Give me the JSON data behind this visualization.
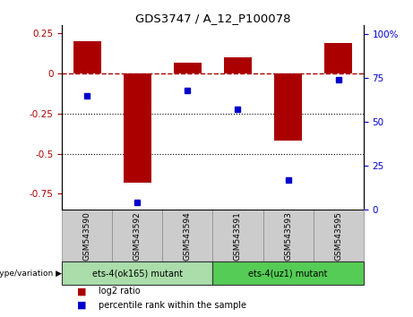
{
  "title": "GDS3747 / A_12_P100078",
  "samples": [
    "GSM543590",
    "GSM543592",
    "GSM543594",
    "GSM543591",
    "GSM543593",
    "GSM543595"
  ],
  "log2_ratios": [
    0.2,
    -0.68,
    0.07,
    0.1,
    -0.42,
    0.19
  ],
  "percentile_ranks": [
    65,
    4,
    68,
    57,
    17,
    74
  ],
  "group1_label": "ets-4(ok165) mutant",
  "group2_label": "ets-4(uz1) mutant",
  "group1_indices": [
    0,
    1,
    2
  ],
  "group2_indices": [
    3,
    4,
    5
  ],
  "bar_color": "#AA0000",
  "dot_color": "#0000CC",
  "ylim_left": [
    -0.85,
    0.3
  ],
  "ylim_right": [
    0,
    105
  ],
  "yticks_left": [
    -0.75,
    -0.5,
    -0.25,
    0,
    0.25
  ],
  "yticks_right": [
    0,
    25,
    50,
    75,
    100
  ],
  "hline_dotted": [
    -0.25,
    -0.5
  ],
  "bg_color": "#ffffff",
  "group1_bg": "#aaddaa",
  "group2_bg": "#55cc55",
  "sample_bg": "#cccccc",
  "legend_bar_label": "log2 ratio",
  "legend_dot_label": "percentile rank within the sample"
}
